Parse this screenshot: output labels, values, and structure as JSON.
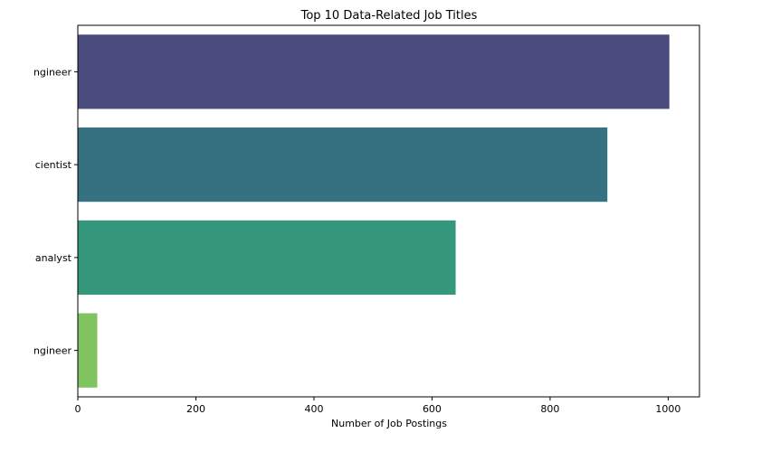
{
  "chart_data": {
    "type": "bar",
    "orientation": "horizontal",
    "title": "Top 10 Data-Related Job Titles",
    "xlabel": "Number of Job Postings",
    "ylabel": "",
    "xlim": [
      0,
      1053
    ],
    "xticks": [
      0,
      200,
      400,
      600,
      800,
      1000
    ],
    "categories": [
      "ngineer",
      "cientist",
      "analyst",
      "ngineer"
    ],
    "values": [
      1002,
      897,
      640,
      33
    ],
    "colors": [
      "#4a4c7e",
      "#367182",
      "#35977b",
      "#7fc45f"
    ],
    "grid": false,
    "legend": "none"
  }
}
